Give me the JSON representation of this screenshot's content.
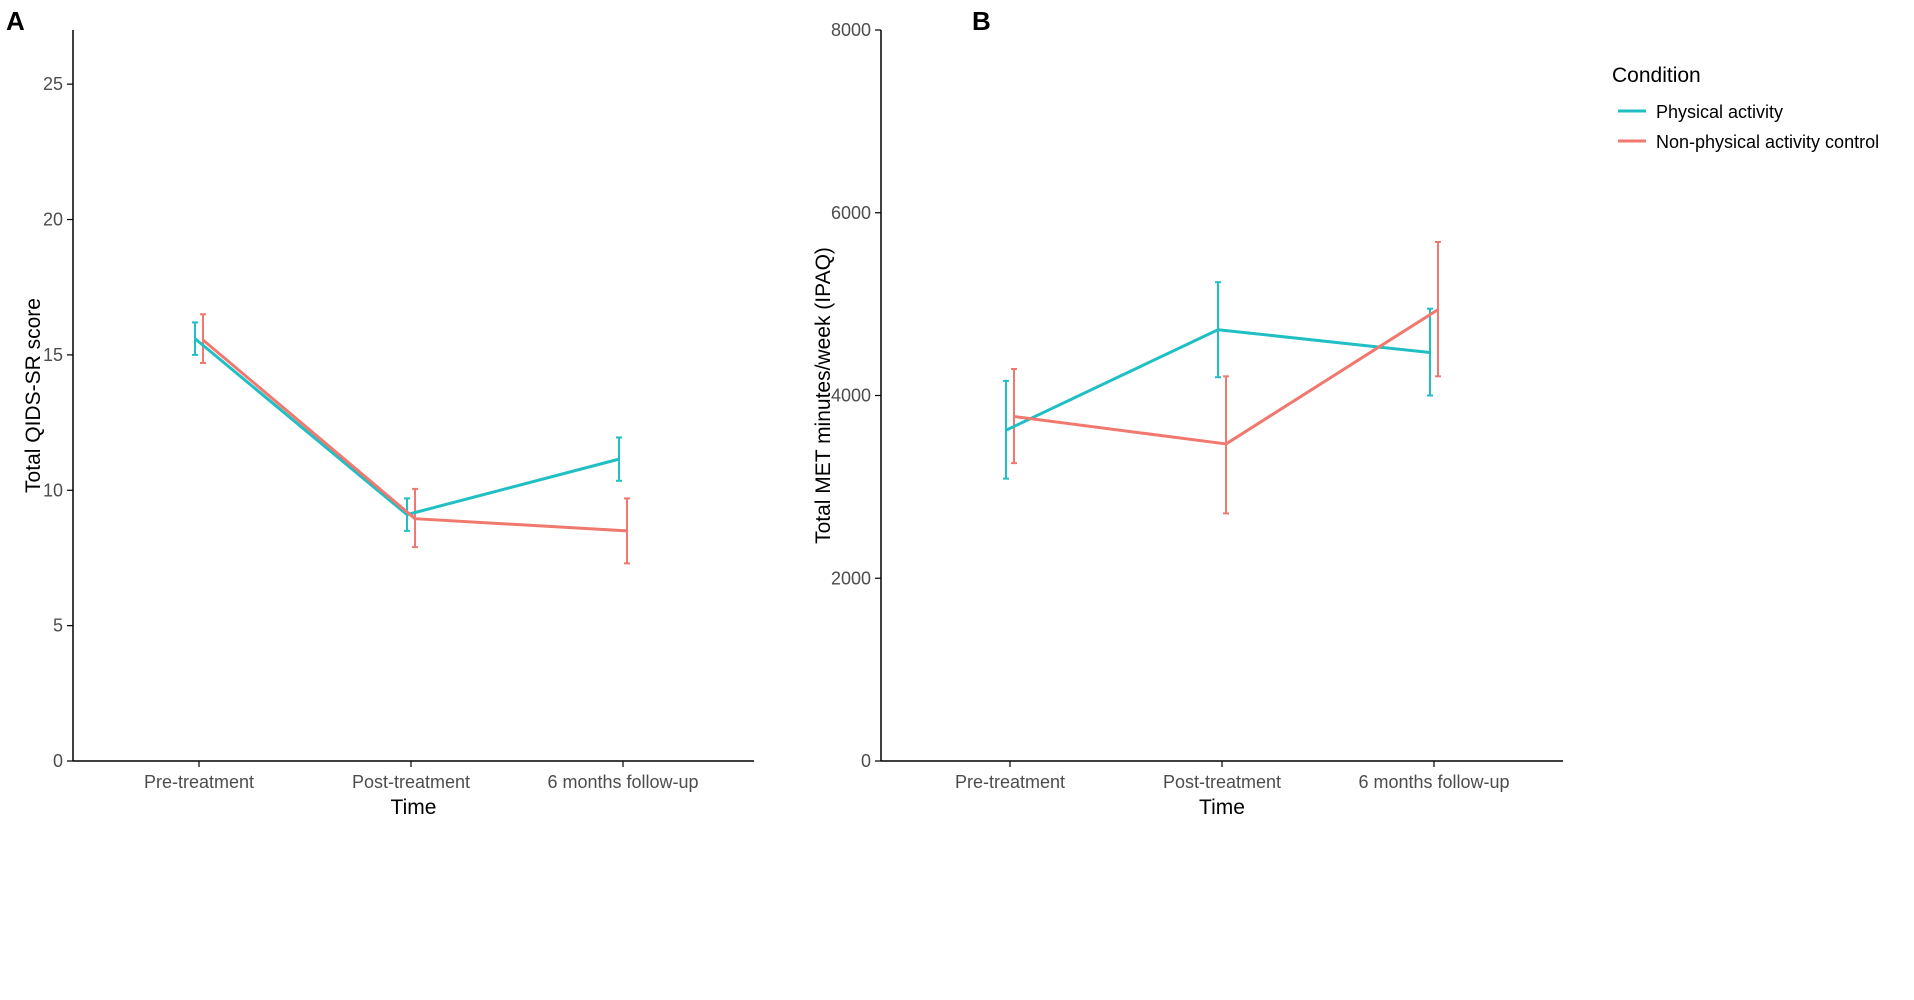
{
  "colors": {
    "physical": "#1FBFC4",
    "control": "#F0786E",
    "axis": "#000000",
    "tick_text": "#4D4D4D"
  },
  "legend": {
    "title": "Condition",
    "items": [
      "Physical activity",
      "Non-physical activity control"
    ]
  },
  "chart_data": [
    {
      "panel": "A",
      "type": "line",
      "title": "",
      "xlabel": "Time",
      "ylabel": "Total QIDS-SR score",
      "categories": [
        "Pre-treatment",
        "Post-treatment",
        "6 months follow-up"
      ],
      "ylim": [
        0,
        27
      ],
      "yticks": [
        0,
        5,
        10,
        15,
        20,
        25
      ],
      "grid": false,
      "series": [
        {
          "name": "Physical activity",
          "values": [
            15.6,
            9.1,
            11.15
          ],
          "lower": [
            15.0,
            8.5,
            10.35
          ],
          "upper": [
            16.2,
            9.7,
            11.95
          ]
        },
        {
          "name": "Non-physical activity control",
          "values": [
            15.55,
            8.95,
            8.5
          ],
          "lower": [
            14.7,
            7.9,
            7.3
          ],
          "upper": [
            16.5,
            10.05,
            9.7
          ]
        }
      ]
    },
    {
      "panel": "B",
      "type": "line",
      "title": "",
      "xlabel": "Time",
      "ylabel": "Total MET minutes/week (IPAQ)",
      "categories": [
        "Pre-treatment",
        "Post-treatment",
        "6 months follow-up"
      ],
      "ylim": [
        0,
        8000
      ],
      "yticks": [
        0,
        2000,
        4000,
        6000,
        8000
      ],
      "grid": false,
      "legend_position": "top-right",
      "series": [
        {
          "name": "Physical activity",
          "values": [
            3620,
            4720,
            4470
          ],
          "lower": [
            3090,
            4200,
            4000
          ],
          "upper": [
            4160,
            5240,
            4950
          ]
        },
        {
          "name": "Non-physical activity control",
          "values": [
            3770,
            3470,
            4940
          ],
          "lower": [
            3260,
            2710,
            4210
          ],
          "upper": [
            4290,
            4210,
            5680
          ]
        }
      ]
    }
  ]
}
